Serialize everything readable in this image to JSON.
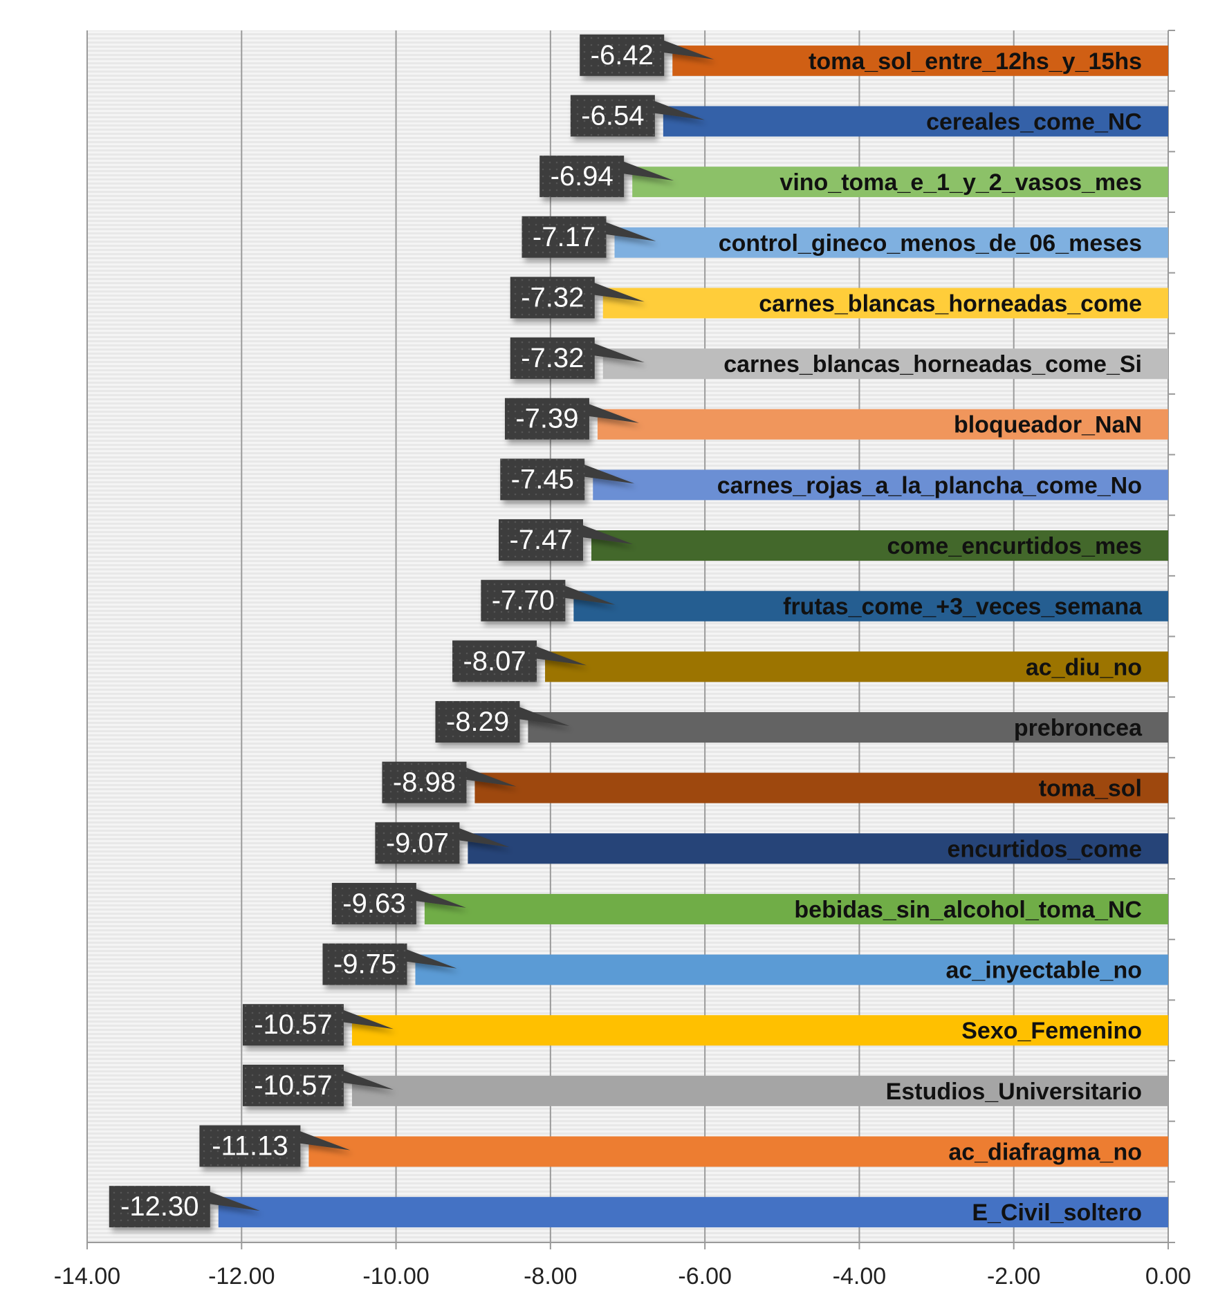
{
  "chart_data": {
    "type": "bar",
    "orientation": "horizontal",
    "title": "",
    "xlabel": "",
    "ylabel": "",
    "xlim": [
      -14,
      0
    ],
    "x_ticks": [
      "-14.00",
      "-12.00",
      "-10.00",
      "-8.00",
      "-6.00",
      "-4.00",
      "-2.00",
      "0.00"
    ],
    "grid": true,
    "legend": "none",
    "categories": [
      "toma_sol_entre_12hs_y_15hs",
      "cereales_come_NC",
      "vino_toma_e_1_y_2_vasos_mes",
      "control_gineco_menos_de_06_meses",
      "carnes_blancas_horneadas_come",
      "carnes_blancas_horneadas_come_Si",
      "bloqueador_NaN",
      "carnes_rojas_a_la_plancha_come_No",
      "come_encurtidos_mes",
      "frutas_come_+3_veces_semana",
      "ac_diu_no",
      "prebroncea",
      "toma_sol",
      "encurtidos_come",
      "bebidas_sin_alcohol_toma_NC",
      "ac_inyectable_no",
      "Sexo_Femenino",
      "Estudios_Universitario",
      "ac_diafragma_no",
      "E_Civil_soltero"
    ],
    "values": [
      -6.42,
      -6.54,
      -6.94,
      -7.17,
      -7.32,
      -7.32,
      -7.39,
      -7.45,
      -7.47,
      -7.7,
      -8.07,
      -8.29,
      -8.98,
      -9.07,
      -9.63,
      -9.75,
      -10.57,
      -10.57,
      -11.13,
      -12.3
    ],
    "data_labels": [
      "-6.42",
      "-6.54",
      "-6.94",
      "-7.17",
      "-7.32",
      "-7.32",
      "-7.39",
      "-7.45",
      "-7.47",
      "-7.70",
      "-8.07",
      "-8.29",
      "-8.98",
      "-9.07",
      "-9.63",
      "-9.75",
      "-10.57",
      "-10.57",
      "-11.13",
      "-12.30"
    ],
    "colors": [
      "#D05F14",
      "#3461A8",
      "#8CC168",
      "#7FB0E0",
      "#FFCD3A",
      "#BDBDBD",
      "#F0965C",
      "#6B8FD4",
      "#43682B",
      "#255E91",
      "#9C7400",
      "#636363",
      "#9E480E",
      "#264478",
      "#70AD47",
      "#5B9BD5",
      "#FFC000",
      "#A5A5A5",
      "#ED7D31",
      "#4472C4"
    ]
  }
}
